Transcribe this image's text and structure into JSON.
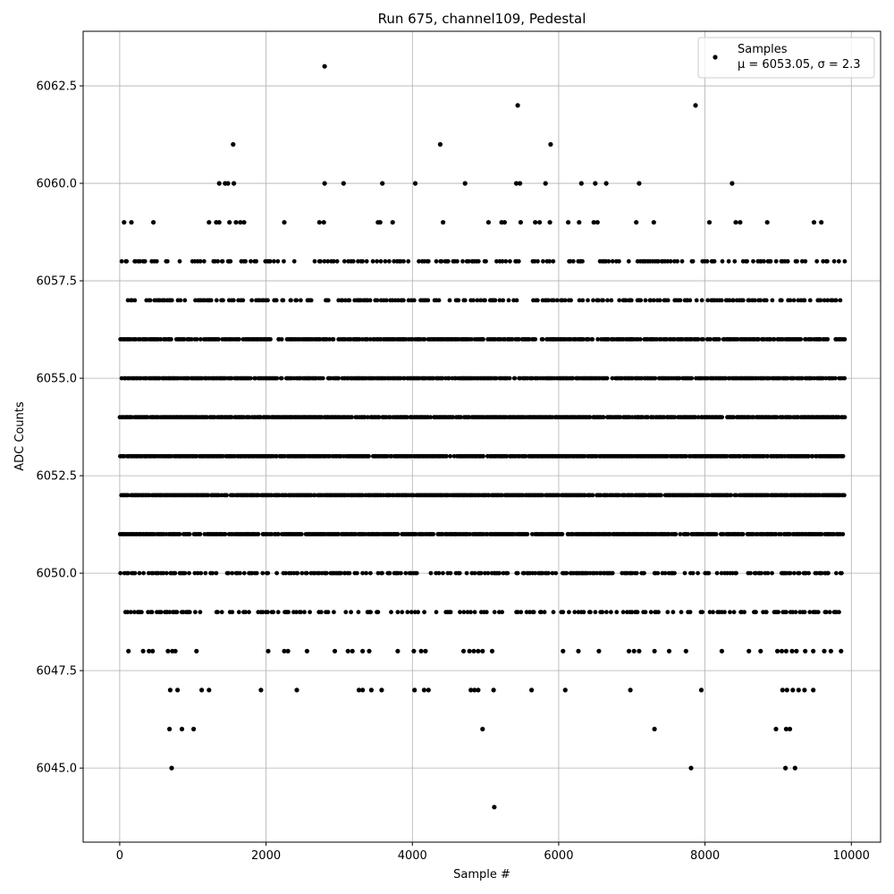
{
  "chart_data": {
    "type": "scatter",
    "title": "Run 675, channel109, Pedestal",
    "xlabel": "Sample #",
    "ylabel": "ADC Counts",
    "xlim": [
      -500,
      10400
    ],
    "ylim": [
      6043.1,
      6063.9
    ],
    "xticks": [
      0,
      2000,
      4000,
      6000,
      8000,
      10000
    ],
    "xtick_labels": [
      "0",
      "2000",
      "4000",
      "6000",
      "8000",
      "10000"
    ],
    "yticks": [
      6045.0,
      6047.5,
      6050.0,
      6052.5,
      6055.0,
      6057.5,
      6060.0,
      6062.5
    ],
    "ytick_labels": [
      "6045.0",
      "6047.5",
      "6050.0",
      "6052.5",
      "6055.0",
      "6057.5",
      "6060.0",
      "6062.5"
    ],
    "grid": true,
    "legend_position": "top-right",
    "marker_color": "#000000",
    "series": [
      {
        "name": "Samples",
        "stats_label": "μ = 6053.05, σ = 2.3",
        "dense_levels": [
          6049,
          6050,
          6051,
          6052,
          6053,
          6054,
          6055,
          6056,
          6057,
          6058
        ],
        "x_range": [
          0,
          9900
        ],
        "points": [
          [
            2800,
            6063
          ],
          [
            5440,
            6062
          ],
          [
            7870,
            6062
          ],
          [
            1550,
            6061
          ],
          [
            4380,
            6061
          ],
          [
            5890,
            6061
          ],
          [
            1360,
            6060
          ],
          [
            1440,
            6060
          ],
          [
            1480,
            6060
          ],
          [
            1560,
            6060
          ],
          [
            2800,
            6060
          ],
          [
            3060,
            6060
          ],
          [
            3590,
            6060
          ],
          [
            4040,
            6060
          ],
          [
            4720,
            6060
          ],
          [
            5420,
            6060
          ],
          [
            5470,
            6060
          ],
          [
            5820,
            6060
          ],
          [
            6310,
            6060
          ],
          [
            6500,
            6060
          ],
          [
            6650,
            6060
          ],
          [
            7100,
            6060
          ],
          [
            8370,
            6060
          ],
          [
            60,
            6059
          ],
          [
            160,
            6059
          ],
          [
            460,
            6059
          ],
          [
            1220,
            6059
          ],
          [
            1320,
            6059
          ],
          [
            1360,
            6059
          ],
          [
            1500,
            6059
          ],
          [
            1590,
            6059
          ],
          [
            1650,
            6059
          ],
          [
            1700,
            6059
          ],
          [
            2250,
            6059
          ],
          [
            2730,
            6059
          ],
          [
            2790,
            6059
          ],
          [
            3530,
            6059
          ],
          [
            3560,
            6059
          ],
          [
            3730,
            6059
          ],
          [
            4420,
            6059
          ],
          [
            5040,
            6059
          ],
          [
            5220,
            6059
          ],
          [
            5260,
            6059
          ],
          [
            5480,
            6059
          ],
          [
            5680,
            6059
          ],
          [
            5740,
            6059
          ],
          [
            5880,
            6059
          ],
          [
            6130,
            6059
          ],
          [
            6280,
            6059
          ],
          [
            6480,
            6059
          ],
          [
            6530,
            6059
          ],
          [
            7060,
            6059
          ],
          [
            7300,
            6059
          ],
          [
            8060,
            6059
          ],
          [
            8420,
            6059
          ],
          [
            8480,
            6059
          ],
          [
            8850,
            6059
          ],
          [
            9490,
            6059
          ],
          [
            9590,
            6059
          ],
          [
            120,
            6048
          ],
          [
            320,
            6048
          ],
          [
            400,
            6048
          ],
          [
            450,
            6048
          ],
          [
            660,
            6048
          ],
          [
            720,
            6048
          ],
          [
            760,
            6048
          ],
          [
            1050,
            6048
          ],
          [
            2030,
            6048
          ],
          [
            2250,
            6048
          ],
          [
            2300,
            6048
          ],
          [
            2560,
            6048
          ],
          [
            2940,
            6048
          ],
          [
            3120,
            6048
          ],
          [
            3180,
            6048
          ],
          [
            3320,
            6048
          ],
          [
            3410,
            6048
          ],
          [
            3800,
            6048
          ],
          [
            4020,
            6048
          ],
          [
            4120,
            6048
          ],
          [
            4180,
            6048
          ],
          [
            4700,
            6048
          ],
          [
            4780,
            6048
          ],
          [
            4840,
            6048
          ],
          [
            4900,
            6048
          ],
          [
            4960,
            6048
          ],
          [
            5090,
            6048
          ],
          [
            6060,
            6048
          ],
          [
            6270,
            6048
          ],
          [
            6550,
            6048
          ],
          [
            6960,
            6048
          ],
          [
            7030,
            6048
          ],
          [
            7100,
            6048
          ],
          [
            7310,
            6048
          ],
          [
            7510,
            6048
          ],
          [
            7740,
            6048
          ],
          [
            8230,
            6048
          ],
          [
            8600,
            6048
          ],
          [
            8760,
            6048
          ],
          [
            8990,
            6048
          ],
          [
            9050,
            6048
          ],
          [
            9110,
            6048
          ],
          [
            9190,
            6048
          ],
          [
            9250,
            6048
          ],
          [
            9370,
            6048
          ],
          [
            9480,
            6048
          ],
          [
            9630,
            6048
          ],
          [
            9720,
            6048
          ],
          [
            9860,
            6048
          ],
          [
            690,
            6047
          ],
          [
            790,
            6047
          ],
          [
            1120,
            6047
          ],
          [
            1220,
            6047
          ],
          [
            1930,
            6047
          ],
          [
            2420,
            6047
          ],
          [
            3270,
            6047
          ],
          [
            3320,
            6047
          ],
          [
            3440,
            6047
          ],
          [
            3580,
            6047
          ],
          [
            4030,
            6047
          ],
          [
            4160,
            6047
          ],
          [
            4220,
            6047
          ],
          [
            4800,
            6047
          ],
          [
            4850,
            6047
          ],
          [
            4900,
            6047
          ],
          [
            5110,
            6047
          ],
          [
            5630,
            6047
          ],
          [
            6090,
            6047
          ],
          [
            6980,
            6047
          ],
          [
            7950,
            6047
          ],
          [
            9060,
            6047
          ],
          [
            9120,
            6047
          ],
          [
            9200,
            6047
          ],
          [
            9280,
            6047
          ],
          [
            9360,
            6047
          ],
          [
            9480,
            6047
          ],
          [
            680,
            6046
          ],
          [
            850,
            6046
          ],
          [
            1010,
            6046
          ],
          [
            4960,
            6046
          ],
          [
            7310,
            6046
          ],
          [
            8970,
            6046
          ],
          [
            9110,
            6046
          ],
          [
            9160,
            6046
          ],
          [
            710,
            6045
          ],
          [
            7810,
            6045
          ],
          [
            9100,
            6045
          ],
          [
            9230,
            6045
          ],
          [
            5120,
            6044
          ]
        ]
      }
    ]
  }
}
